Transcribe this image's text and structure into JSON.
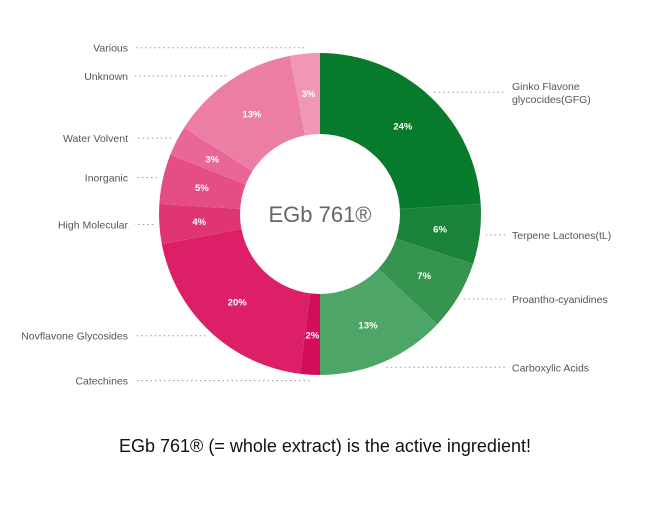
{
  "chart_data": {
    "type": "pie",
    "center_label": "EGb 761®",
    "caption": "EGb 761® (= whole extract) is the active ingredient!",
    "slices": [
      {
        "label_lines": [
          "Ginko Flavone",
          "glycocides(GFG)"
        ],
        "value": 24,
        "value_label": "24%",
        "color": "#077a2c"
      },
      {
        "label_lines": [
          "Terpene Lactones(tL)"
        ],
        "value": 6,
        "value_label": "6%",
        "color": "#198338"
      },
      {
        "label_lines": [
          "Proantho-cyanidines"
        ],
        "value": 7,
        "value_label": "7%",
        "color": "#35944d"
      },
      {
        "label_lines": [
          "Carboxylic Acids"
        ],
        "value": 13,
        "value_label": "13%",
        "color": "#4ea568"
      },
      {
        "label_lines": [
          "Catechines"
        ],
        "value": 2,
        "value_label": "2%",
        "color": "#d30e58"
      },
      {
        "label_lines": [
          "Novflavone Glycosides"
        ],
        "value": 20,
        "value_label": "20%",
        "color": "#dd1f68"
      },
      {
        "label_lines": [
          "High Molecular"
        ],
        "value": 4,
        "value_label": "4%",
        "color": "#e03575"
      },
      {
        "label_lines": [
          "Inorganic"
        ],
        "value": 5,
        "value_label": "5%",
        "color": "#e64c85"
      },
      {
        "label_lines": [
          "Water Volvent"
        ],
        "value": 3,
        "value_label": "3%",
        "color": "#e96696"
      },
      {
        "label_lines": [
          "Unknown"
        ],
        "value": 13,
        "value_label": "13%",
        "color": "#ec7ea6"
      },
      {
        "label_lines": [
          "Various"
        ],
        "value": 3,
        "value_label": "3%",
        "color": "#f096b6"
      }
    ]
  }
}
